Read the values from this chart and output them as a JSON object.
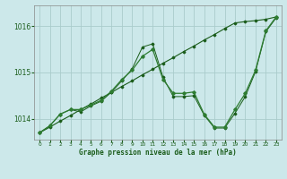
{
  "title": "Graphe pression niveau de la mer (hPa)",
  "background_color": "#cce8ea",
  "grid_color": "#aacccc",
  "line_color_dark": "#1a5c1a",
  "line_color_medium": "#2e7d32",
  "xlim": [
    -0.5,
    23.5
  ],
  "ylim": [
    1013.55,
    1016.45
  ],
  "yticks": [
    1014,
    1015,
    1016
  ],
  "xticks": [
    0,
    1,
    2,
    3,
    4,
    5,
    6,
    7,
    8,
    9,
    10,
    11,
    12,
    13,
    14,
    15,
    16,
    17,
    18,
    19,
    20,
    21,
    22,
    23
  ],
  "series1_x": [
    0,
    1,
    2,
    3,
    4,
    5,
    6,
    7,
    8,
    9,
    10,
    11,
    12,
    13,
    14,
    15,
    16,
    17,
    18,
    19,
    20,
    21,
    22,
    23
  ],
  "series1_y": [
    1013.7,
    1013.82,
    1013.95,
    1014.07,
    1014.2,
    1014.32,
    1014.45,
    1014.57,
    1014.7,
    1014.82,
    1014.95,
    1015.07,
    1015.2,
    1015.32,
    1015.45,
    1015.57,
    1015.7,
    1015.82,
    1015.95,
    1016.07,
    1016.1,
    1016.12,
    1016.15,
    1016.2
  ],
  "series2_x": [
    0,
    1,
    2,
    3,
    4,
    5,
    6,
    7,
    8,
    9,
    10,
    11,
    12,
    13,
    14,
    15,
    16,
    17,
    18,
    19,
    20,
    21,
    22,
    23
  ],
  "series2_y": [
    1013.7,
    1013.85,
    1014.1,
    1014.2,
    1014.2,
    1014.3,
    1014.4,
    1014.6,
    1014.85,
    1015.05,
    1015.35,
    1015.5,
    1014.85,
    1014.55,
    1014.55,
    1014.58,
    1014.1,
    1013.82,
    1013.82,
    1014.2,
    1014.55,
    1015.05,
    1015.9,
    1016.2
  ],
  "series3_x": [
    0,
    1,
    2,
    3,
    4,
    5,
    6,
    7,
    8,
    9,
    10,
    11,
    12,
    13,
    14,
    15,
    16,
    17,
    18,
    19,
    20,
    21,
    22,
    23
  ],
  "series3_y": [
    1013.7,
    1013.85,
    1014.1,
    1014.2,
    1014.15,
    1014.28,
    1014.38,
    1014.58,
    1014.82,
    1015.08,
    1015.55,
    1015.62,
    1014.9,
    1014.48,
    1014.48,
    1014.5,
    1014.08,
    1013.8,
    1013.8,
    1014.12,
    1014.48,
    1015.02,
    1015.88,
    1016.18
  ]
}
